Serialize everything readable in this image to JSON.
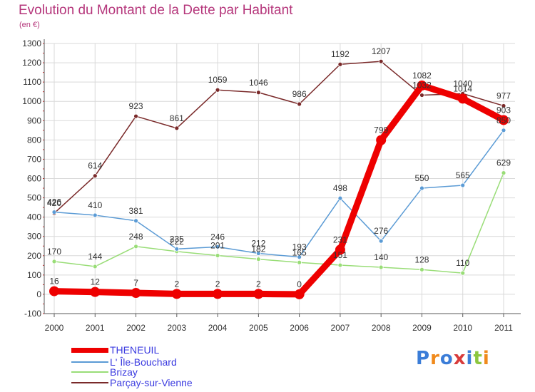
{
  "title": "Evolution du Montant de la Dette par Habitant",
  "unit": "(en €)",
  "logo_text": "Proxiti",
  "colors": {
    "title": "#b5367b",
    "legend_text": "#3a3ae0",
    "grid": "#d9d9d9",
    "axis": "#5a5a5a",
    "tick_red": "#cc2222"
  },
  "chart_data": {
    "type": "line",
    "title": "Evolution du Montant de la Dette par Habitant",
    "ylabel": "(en €)",
    "xlabel": "",
    "x": [
      "2000",
      "2001",
      "2002",
      "2003",
      "2004",
      "2005",
      "2006",
      "2007",
      "2008",
      "2009",
      "2010",
      "2011"
    ],
    "ylim": [
      -100,
      1300
    ],
    "yticks": [
      "-100",
      "0",
      "100",
      "200",
      "300",
      "400",
      "500",
      "600",
      "700",
      "800",
      "900",
      "1000",
      "1100",
      "1200",
      "1300"
    ],
    "grid": true,
    "legend_position": "bottom-left",
    "series": [
      {
        "name": "THENEUIL",
        "color": "#ee0000",
        "values": [
          16,
          12,
          7,
          2,
          2,
          2,
          0,
          231,
          799,
          1082,
          1014,
          903
        ],
        "labels": [
          "16",
          "12",
          "7",
          "2",
          "2",
          "2",
          "0",
          "231",
          "799",
          "1082",
          "1014",
          "903"
        ]
      },
      {
        "name": "L' Île-Bouchard",
        "color": "#5b9bd5",
        "values": [
          426,
          410,
          381,
          235,
          246,
          212,
          193,
          498,
          276,
          550,
          565,
          850
        ],
        "labels": [
          "426",
          "410",
          "381",
          "235",
          "246",
          "212",
          "193",
          "498",
          "276",
          "550",
          "565",
          "850"
        ]
      },
      {
        "name": "Brizay",
        "color": "#99dd77",
        "values": [
          170,
          144,
          248,
          222,
          201,
          182,
          165,
          151,
          140,
          128,
          110,
          629
        ],
        "labels": [
          "170",
          "144",
          "248",
          "222",
          "201",
          "182",
          "165",
          "151",
          "140",
          "128",
          "110",
          "629"
        ]
      },
      {
        "name": "Parçay-sur-Vienne",
        "color": "#7a2a2a",
        "values": [
          420,
          614,
          923,
          861,
          1059,
          1046,
          986,
          1192,
          1207,
          1032,
          1040,
          977
        ],
        "labels": [
          "420",
          "614",
          "923",
          "861",
          "1059",
          "1046",
          "986",
          "1192",
          "1207",
          "1032",
          "1040",
          "977"
        ]
      }
    ]
  }
}
